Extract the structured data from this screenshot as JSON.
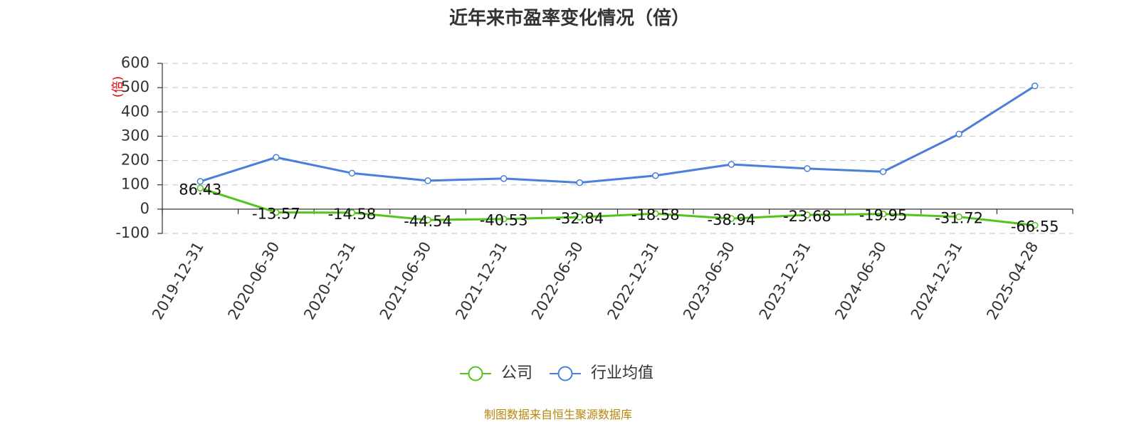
{
  "chart_data": {
    "type": "line",
    "title": "近年来市盈率变化情况（倍）",
    "ylabel": "(倍)",
    "ylim": [
      -100,
      600
    ],
    "yticks": [
      600,
      500,
      400,
      300,
      200,
      100,
      0,
      -100
    ],
    "categories": [
      "2019-12-31",
      "2020-06-30",
      "2020-12-31",
      "2021-06-30",
      "2021-12-31",
      "2022-06-30",
      "2022-12-31",
      "2023-06-30",
      "2023-12-31",
      "2024-06-30",
      "2024-12-31",
      "2025-04-28"
    ],
    "series": [
      {
        "name": "公司",
        "color": "#52c41a",
        "values": [
          86.43,
          -13.57,
          -14.58,
          -44.54,
          -40.53,
          -32.84,
          -18.58,
          -38.94,
          -23.68,
          -19.95,
          -31.72,
          -66.55
        ]
      },
      {
        "name": "行业均值",
        "color": "#4a7fdc",
        "values": [
          114,
          213,
          148,
          117,
          126,
          109,
          138,
          184,
          167,
          154,
          309,
          507
        ]
      }
    ],
    "grid": true,
    "legend_position": "bottom-center"
  },
  "source": {
    "text": "制图数据来自恒生聚源数据库",
    "color": "#b8860b"
  }
}
